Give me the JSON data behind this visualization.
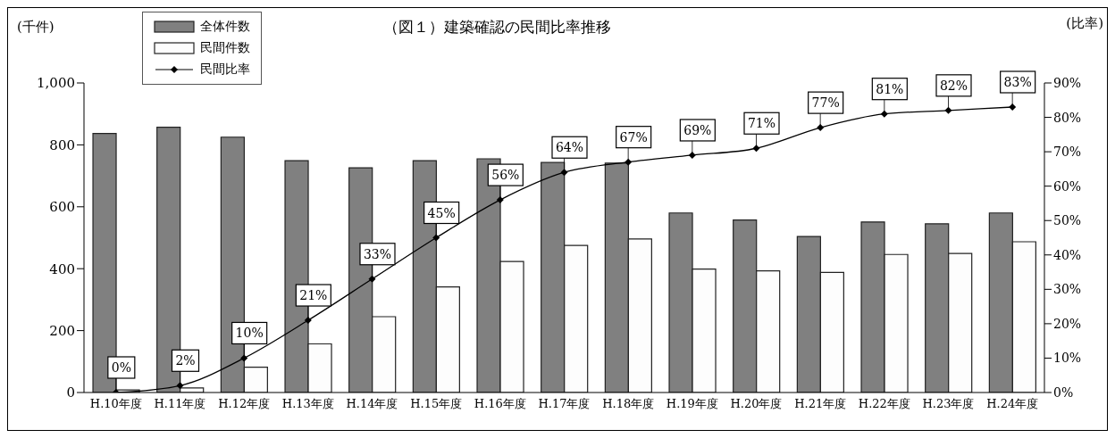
{
  "chart_data": {
    "type": "bar",
    "title": "（図１）建築確認の民間比率推移",
    "ylabel": "(千件)",
    "y2label": "(比率)",
    "categories": [
      "H.10年度",
      "H.11年度",
      "H.12年度",
      "H.13年度",
      "H.14年度",
      "H.15年度",
      "H.16年度",
      "H.17年度",
      "H.18年度",
      "H.19年度",
      "H.20年度",
      "H.21年度",
      "H.22年度",
      "H.23年度",
      "H.24年度"
    ],
    "series": [
      {
        "name": "全体件数",
        "color": "#808080",
        "values": [
          837,
          857,
          825,
          749,
          726,
          749,
          755,
          743,
          741,
          580,
          557,
          504,
          551,
          545,
          580
        ]
      },
      {
        "name": "民間件数",
        "color": "#fdfdfd",
        "values": [
          8,
          15,
          82,
          157,
          245,
          341,
          423,
          475,
          496,
          399,
          393,
          388,
          446,
          449,
          487
        ]
      },
      {
        "name": "民間比率",
        "type": "line",
        "axis": "y2",
        "color": "#000000",
        "values": [
          0,
          2,
          10,
          21,
          33,
          45,
          56,
          64,
          67,
          69,
          71,
          77,
          81,
          82,
          83
        ],
        "value_labels": [
          "0%",
          "2%",
          "10%",
          "21%",
          "33%",
          "45%",
          "56%",
          "64%",
          "67%",
          "69%",
          "71%",
          "77%",
          "81%",
          "82%",
          "83%"
        ]
      }
    ],
    "ylim": [
      0,
      1000
    ],
    "yticks": [
      0,
      200,
      400,
      600,
      800,
      {
        "value": 1000,
        "label": "1,000"
      }
    ],
    "y2lim": [
      0,
      90
    ],
    "y2ticks": [
      {
        "value": 0,
        "label": "0%"
      },
      {
        "value": 10,
        "label": "10%"
      },
      {
        "value": 20,
        "label": "20%"
      },
      {
        "value": 30,
        "label": "30%"
      },
      {
        "value": 40,
        "label": "40%"
      },
      {
        "value": 50,
        "label": "50%"
      },
      {
        "value": 60,
        "label": "60%"
      },
      {
        "value": 70,
        "label": "70%"
      },
      {
        "value": 80,
        "label": "80%"
      },
      {
        "value": 90,
        "label": "90%"
      }
    ],
    "grid": false,
    "legend": "top left",
    "marker": "diamond",
    "line_style": "solid"
  }
}
